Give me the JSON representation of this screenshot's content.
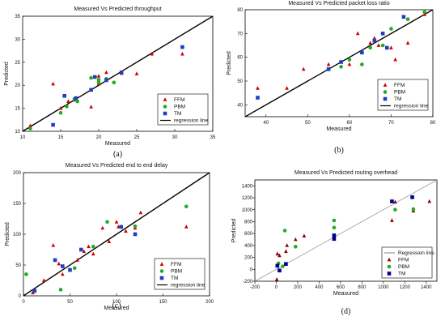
{
  "chart_data": [
    {
      "type": "scatter",
      "title": "Measured Vs Predicted throughput",
      "xlabel": "Measured",
      "ylabel": "Predicted",
      "xlim": [
        10,
        35
      ],
      "ylim": [
        10,
        35
      ],
      "xticks": [
        "10",
        "15",
        "20",
        "25",
        "30",
        "35"
      ],
      "yticks": [
        "10",
        "15",
        "20",
        "25",
        "30",
        "35"
      ],
      "legend_position": "bottom-right",
      "caption": "(a)",
      "regression_line": {
        "name": "regression line",
        "from": [
          10,
          10
        ],
        "to": [
          35,
          35
        ],
        "color": "#000000"
      },
      "series": [
        {
          "name": "FFM",
          "marker": "triangle",
          "color": "#cc0000",
          "points": [
            [
              11,
              11.2
            ],
            [
              14,
              20.3
            ],
            [
              15,
              15
            ],
            [
              16,
              16.5
            ],
            [
              16.8,
              16.8
            ],
            [
              19,
              15.3
            ],
            [
              19,
              19
            ],
            [
              20,
              20.3
            ],
            [
              20,
              22
            ],
            [
              21,
              22.8
            ],
            [
              23,
              22.6
            ],
            [
              25,
              22.5
            ],
            [
              27,
              26.8
            ],
            [
              31,
              26.8
            ]
          ]
        },
        {
          "name": "PBM",
          "marker": "circle",
          "color": "#22aa22",
          "points": [
            [
              11,
              10.6
            ],
            [
              15,
              14
            ],
            [
              15.8,
              15.4
            ],
            [
              16.8,
              17
            ],
            [
              17.2,
              16.5
            ],
            [
              19,
              21.6
            ],
            [
              20,
              20.6
            ],
            [
              20,
              21.2
            ],
            [
              21,
              21.4
            ],
            [
              22,
              20.6
            ]
          ]
        },
        {
          "name": "TM",
          "marker": "square",
          "color": "#1f3fbf",
          "points": [
            [
              14,
              11.4
            ],
            [
              15.5,
              17.7
            ],
            [
              17,
              17.2
            ],
            [
              19,
              19
            ],
            [
              19.5,
              21.8
            ],
            [
              21,
              21.1
            ],
            [
              23,
              22.8
            ],
            [
              31,
              28.3
            ]
          ]
        }
      ]
    },
    {
      "type": "scatter",
      "title": "Measured Vs Predicted packet loss ratio",
      "xlabel": "Measured",
      "ylabel": "Predicted",
      "xlim": [
        35,
        80
      ],
      "ylim": [
        35,
        80
      ],
      "xticks": [
        "40",
        "50",
        "60",
        "70",
        "80"
      ],
      "yticks": [
        "40",
        "50",
        "60",
        "70",
        "80"
      ],
      "legend_position": "bottom-right",
      "caption": "(b)",
      "regression_line": {
        "name": "regression line",
        "from": [
          35,
          35
        ],
        "to": [
          80,
          80
        ],
        "color": "#000000"
      },
      "series": [
        {
          "name": "FFM",
          "marker": "triangle",
          "color": "#cc0000",
          "points": [
            [
              38,
              47
            ],
            [
              45,
              47
            ],
            [
              49,
              55
            ],
            [
              55,
              57
            ],
            [
              60,
              57
            ],
            [
              62,
              70
            ],
            [
              65,
              66
            ],
            [
              66,
              68
            ],
            [
              67,
              65
            ],
            [
              70,
              64
            ],
            [
              71,
              59
            ],
            [
              74,
              66
            ],
            [
              78,
              78
            ]
          ]
        },
        {
          "name": "PBM",
          "marker": "circle",
          "color": "#22aa22",
          "points": [
            [
              55,
              55
            ],
            [
              58,
              56
            ],
            [
              60,
              59
            ],
            [
              63,
              57
            ],
            [
              65,
              64
            ],
            [
              68,
              65
            ],
            [
              70,
              72
            ],
            [
              74,
              76
            ],
            [
              78,
              79
            ]
          ]
        },
        {
          "name": "TM",
          "marker": "square",
          "color": "#1f3fbf",
          "points": [
            [
              38,
              43
            ],
            [
              55,
              55
            ],
            [
              58,
              58
            ],
            [
              63,
              62
            ],
            [
              66,
              67
            ],
            [
              68,
              70
            ],
            [
              69,
              64
            ],
            [
              73,
              77
            ]
          ]
        }
      ]
    },
    {
      "type": "scatter",
      "title": "Measured Vs Predicted end to end delay",
      "xlabel": "Measured",
      "ylabel": "Predicted",
      "xlim": [
        0,
        200
      ],
      "ylim": [
        0,
        200
      ],
      "xticks": [
        "0",
        "50",
        "100",
        "150",
        "200"
      ],
      "yticks": [
        "0",
        "50",
        "100",
        "150",
        "200"
      ],
      "legend_position": "bottom-right",
      "caption": "(c)",
      "regression_line": {
        "name": "regression line",
        "from": [
          0,
          0
        ],
        "to": [
          200,
          200
        ],
        "color": "#000000"
      },
      "series": [
        {
          "name": "FFM",
          "marker": "triangle",
          "color": "#cc0000",
          "points": [
            [
              10,
              5
            ],
            [
              22,
              25
            ],
            [
              32,
              82
            ],
            [
              38,
              52
            ],
            [
              42,
              35
            ],
            [
              50,
              42
            ],
            [
              58,
              58
            ],
            [
              65,
              72
            ],
            [
              70,
              80
            ],
            [
              75,
              68
            ],
            [
              85,
              110
            ],
            [
              92,
              88
            ],
            [
              100,
              120
            ],
            [
              102,
              112
            ],
            [
              110,
              105
            ],
            [
              120,
              110
            ],
            [
              126,
              135
            ],
            [
              175,
              112
            ]
          ]
        },
        {
          "name": "PBM",
          "marker": "circle",
          "color": "#22aa22",
          "points": [
            [
              3,
              35
            ],
            [
              40,
              10
            ],
            [
              55,
              45
            ],
            [
              75,
              80
            ],
            [
              90,
              120
            ],
            [
              120,
              113
            ],
            [
              175,
              145
            ]
          ]
        },
        {
          "name": "TM",
          "marker": "square",
          "color": "#1f3fbf",
          "points": [
            [
              12,
              8
            ],
            [
              34,
              58
            ],
            [
              42,
              48
            ],
            [
              50,
              42
            ],
            [
              62,
              75
            ],
            [
              105,
              112
            ],
            [
              120,
              100
            ]
          ]
        }
      ]
    },
    {
      "type": "scatter",
      "title": "Measured Vs Predicted routing overhead",
      "xlabel": "Measured",
      "ylabel": "Predicted",
      "xlim": [
        -200,
        1500
      ],
      "ylim": [
        -200,
        1500
      ],
      "xticks": [
        "-200",
        "0",
        "200",
        "400",
        "600",
        "800",
        "1000",
        "1200",
        "1400"
      ],
      "yticks": [
        "-200",
        "0",
        "200",
        "400",
        "600",
        "800",
        "1000",
        "1200",
        "1400"
      ],
      "legend_position": "bottom-right",
      "caption": "(d)",
      "regression_line": {
        "name": "Regression line",
        "from": [
          -200,
          -200
        ],
        "to": [
          1500,
          1500
        ],
        "color": "#999999"
      },
      "series": [
        {
          "name": "FFM",
          "marker": "triangle",
          "color": "#8b0000",
          "points": [
            [
              0,
              -200
            ],
            [
              5,
              -170
            ],
            [
              10,
              260
            ],
            [
              30,
              230
            ],
            [
              90,
              300
            ],
            [
              100,
              400
            ],
            [
              180,
              500
            ],
            [
              260,
              560
            ],
            [
              540,
              560
            ],
            [
              1080,
              820
            ],
            [
              1110,
              1130
            ],
            [
              1280,
              980
            ],
            [
              1430,
              1140
            ]
          ]
        },
        {
          "name": "PBM",
          "marker": "circle",
          "color": "#22aa22",
          "points": [
            [
              20,
              100
            ],
            [
              60,
              50
            ],
            [
              80,
              650
            ],
            [
              180,
              380
            ],
            [
              540,
              820
            ],
            [
              540,
              700
            ],
            [
              1110,
              1000
            ],
            [
              1280,
              1010
            ]
          ]
        },
        {
          "name": "TM",
          "marker": "square",
          "color": "#00008b",
          "points": [
            [
              10,
              60
            ],
            [
              30,
              -20
            ],
            [
              90,
              90
            ],
            [
              540,
              510
            ],
            [
              540,
              570
            ],
            [
              1080,
              1140
            ],
            [
              1270,
              1210
            ]
          ]
        }
      ]
    }
  ]
}
